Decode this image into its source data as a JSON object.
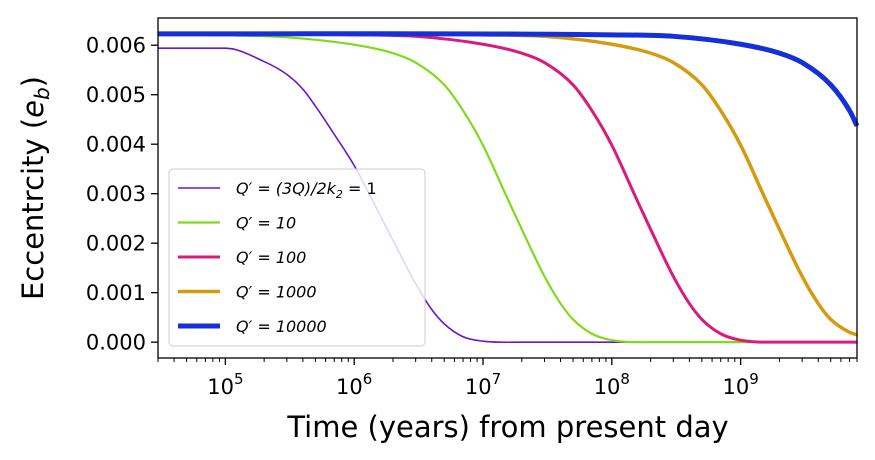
{
  "chart_data": {
    "type": "line",
    "title": "",
    "xlabel": "Time (years) from present day",
    "ylabel": "Eccentrcity (e_b)",
    "ylabel_main": "Eccentrcity (",
    "ylabel_var": "e",
    "ylabel_sub": "b",
    "ylabel_close": ")",
    "xscale": "log",
    "xlim": [
      30000,
      8000000000
    ],
    "ylim": [
      -0.00032,
      0.00655
    ],
    "grid": false,
    "legend_position": "center-left",
    "x_ticks": [
      {
        "value": 100000,
        "base": "10",
        "exp": "5"
      },
      {
        "value": 1000000,
        "base": "10",
        "exp": "6"
      },
      {
        "value": 10000000,
        "base": "10",
        "exp": "7"
      },
      {
        "value": 100000000,
        "base": "10",
        "exp": "8"
      },
      {
        "value": 1000000000,
        "base": "10",
        "exp": "9"
      }
    ],
    "y_ticks": [
      {
        "value": 0.0,
        "label": "0.000"
      },
      {
        "value": 0.001,
        "label": "0.001"
      },
      {
        "value": 0.002,
        "label": "0.002"
      },
      {
        "value": 0.003,
        "label": "0.003"
      },
      {
        "value": 0.004,
        "label": "0.004"
      },
      {
        "value": 0.005,
        "label": "0.005"
      },
      {
        "value": 0.006,
        "label": "0.006"
      }
    ],
    "series": [
      {
        "name": "Q′ = (3Q)/2k₂ = 1",
        "legend_label": {
          "main": "Q′ = (3Q)/2k",
          "sub": "2",
          "tail": " = 1"
        },
        "color": "#6a14d6",
        "line_width": 1.6,
        "x": [
          30000,
          100000,
          200000,
          300000,
          400000,
          500000,
          700000,
          1000000,
          1500000,
          2000000,
          3000000,
          4000000,
          5000000,
          7000000,
          10000000,
          20000000,
          100000000,
          8000000000
        ],
        "y": [
          0.00594,
          0.00594,
          0.00567,
          0.00541,
          0.00511,
          0.00477,
          0.0042,
          0.00357,
          0.00269,
          0.00206,
          0.00118,
          0.00066,
          0.00037,
          0.00011,
          2e-05,
          0.0,
          0.0,
          0.0
        ]
      },
      {
        "name": "Q′ = 10",
        "legend_label": {
          "main": "Q′ = 10",
          "sub": "",
          "tail": ""
        },
        "color": "#7ddb1a",
        "line_width": 2.2,
        "x": [
          30000,
          100000,
          300000,
          1000000,
          2000000,
          3000000,
          5000000,
          7000000,
          10000000,
          15000000,
          20000000,
          30000000,
          40000000,
          50000000,
          70000000,
          100000000,
          200000000,
          8000000000
        ],
        "y": [
          0.00622,
          0.0062,
          0.00616,
          0.00601,
          0.00584,
          0.00565,
          0.0052,
          0.00468,
          0.00398,
          0.00298,
          0.00228,
          0.00133,
          0.00078,
          0.00046,
          0.00017,
          4e-05,
          0.0,
          0.0
        ]
      },
      {
        "name": "Q′ = 100",
        "legend_label": {
          "main": "Q′ = 100",
          "sub": "",
          "tail": ""
        },
        "color": "#d81b7d",
        "line_width": 3,
        "x": [
          30000,
          1000000,
          3000000,
          10000000,
          20000000,
          30000000,
          50000000,
          70000000,
          100000000,
          150000000,
          200000000,
          300000000,
          400000000,
          500000000,
          700000000,
          1000000000,
          2000000000,
          8000000000
        ],
        "y": [
          0.00623,
          0.00621,
          0.00618,
          0.00602,
          0.00584,
          0.00565,
          0.0052,
          0.00468,
          0.00398,
          0.00298,
          0.00228,
          0.00133,
          0.00078,
          0.00046,
          0.00017,
          4e-05,
          0.0,
          0.0
        ]
      },
      {
        "name": "Q′ = 1000",
        "legend_label": {
          "main": "Q′ = 1000",
          "sub": "",
          "tail": ""
        },
        "color": "#d49a10",
        "line_width": 3.5,
        "x": [
          30000,
          10000000,
          30000000,
          100000000,
          200000000,
          300000000,
          500000000,
          700000000,
          1000000000,
          1500000000,
          2000000000,
          3000000000,
          4000000000,
          5000000000,
          7000000000,
          8000000000
        ],
        "y": [
          0.00623,
          0.00621,
          0.00618,
          0.00602,
          0.00584,
          0.00565,
          0.0052,
          0.00468,
          0.00398,
          0.00298,
          0.00228,
          0.00133,
          0.00078,
          0.00046,
          0.0002,
          0.00015
        ]
      },
      {
        "name": "Q′ = 10000",
        "legend_label": {
          "main": "Q′ = 10000",
          "sub": "",
          "tail": ""
        },
        "color": "#1530d8",
        "line_width": 5,
        "x": [
          30000,
          100000000,
          300000000,
          1000000000,
          2000000000,
          3000000000,
          5000000000,
          7000000000,
          8000000000
        ],
        "y": [
          0.00623,
          0.00621,
          0.00618,
          0.00602,
          0.00584,
          0.00565,
          0.0052,
          0.00468,
          0.00437
        ]
      }
    ]
  }
}
